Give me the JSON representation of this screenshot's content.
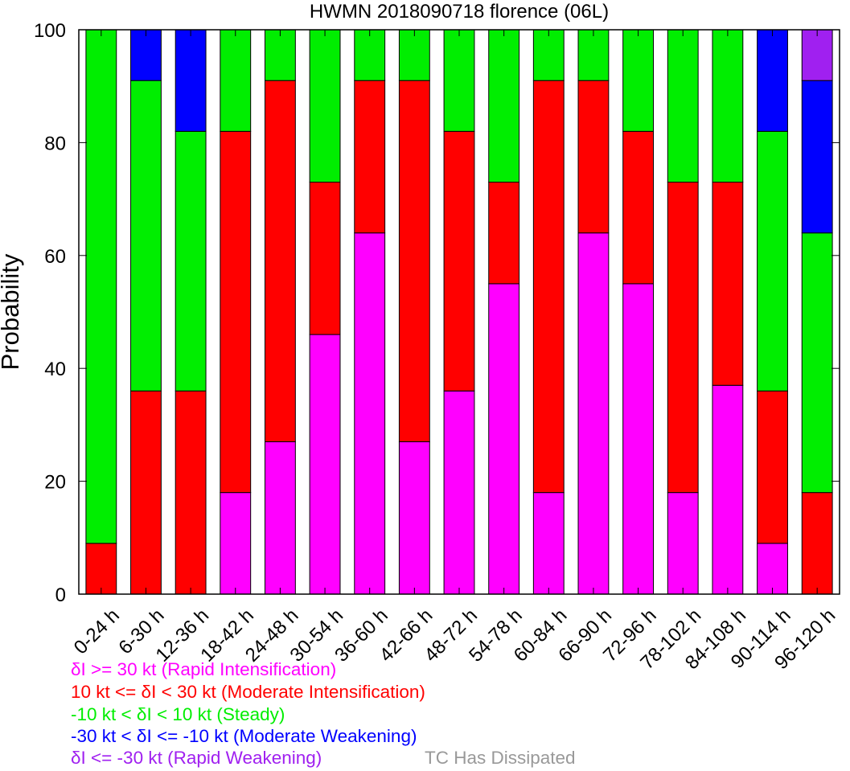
{
  "colors": {
    "rapid_intensification": "#ff00ff",
    "moderate_intensification": "#ff0000",
    "steady": "#00ee00",
    "moderate_weakening": "#0000ff",
    "rapid_weakening": "#a020f0",
    "dissipated": "#999999"
  },
  "chart_data": {
    "type": "bar",
    "stacked": true,
    "title": "HWMN 2018090718 florence (06L)",
    "xlabel": "",
    "ylabel": "Probability",
    "ylim": [
      0,
      100
    ],
    "yticks": [
      0,
      20,
      40,
      60,
      80,
      100
    ],
    "grid": false,
    "legend_position": "bottom",
    "categories": [
      "0-24 h",
      "6-30 h",
      "12-36 h",
      "18-42 h",
      "24-48 h",
      "30-54 h",
      "36-60 h",
      "42-66 h",
      "48-72 h",
      "54-78 h",
      "60-84 h",
      "66-90 h",
      "72-96 h",
      "78-102 h",
      "84-108 h",
      "90-114 h",
      "96-120 h"
    ],
    "series": [
      {
        "key": "rapid_intensification",
        "values": [
          0,
          0,
          0,
          18,
          27,
          46,
          64,
          27,
          36,
          55,
          18,
          64,
          55,
          18,
          37,
          9,
          0
        ]
      },
      {
        "key": "moderate_intensification",
        "values": [
          9,
          36,
          36,
          64,
          64,
          27,
          27,
          64,
          46,
          18,
          73,
          27,
          27,
          55,
          36,
          27,
          18
        ]
      },
      {
        "key": "steady",
        "values": [
          91,
          55,
          46,
          18,
          9,
          27,
          9,
          9,
          18,
          27,
          9,
          9,
          18,
          27,
          27,
          46,
          46
        ]
      },
      {
        "key": "moderate_weakening",
        "values": [
          0,
          9,
          18,
          0,
          0,
          0,
          0,
          0,
          0,
          0,
          0,
          0,
          0,
          0,
          0,
          18,
          27
        ]
      },
      {
        "key": "rapid_weakening",
        "values": [
          0,
          0,
          0,
          0,
          0,
          0,
          0,
          0,
          0,
          0,
          0,
          0,
          0,
          0,
          0,
          0,
          9
        ]
      }
    ]
  },
  "legend": {
    "entries": [
      {
        "key": "rapid_intensification",
        "text": "δI >= 30 kt (Rapid Intensification)"
      },
      {
        "key": "moderate_intensification",
        "text": "10 kt <= δI < 30 kt (Moderate Intensification)"
      },
      {
        "key": "steady",
        "text": "-10 kt < δI < 10 kt (Steady)"
      },
      {
        "key": "moderate_weakening",
        "text": "-30 kt < δI <= -10 kt (Moderate Weakening)"
      },
      {
        "key": "rapid_weakening",
        "text": "δI <= -30 kt (Rapid Weakening)"
      }
    ],
    "dissipated_text": "TC Has Dissipated"
  }
}
